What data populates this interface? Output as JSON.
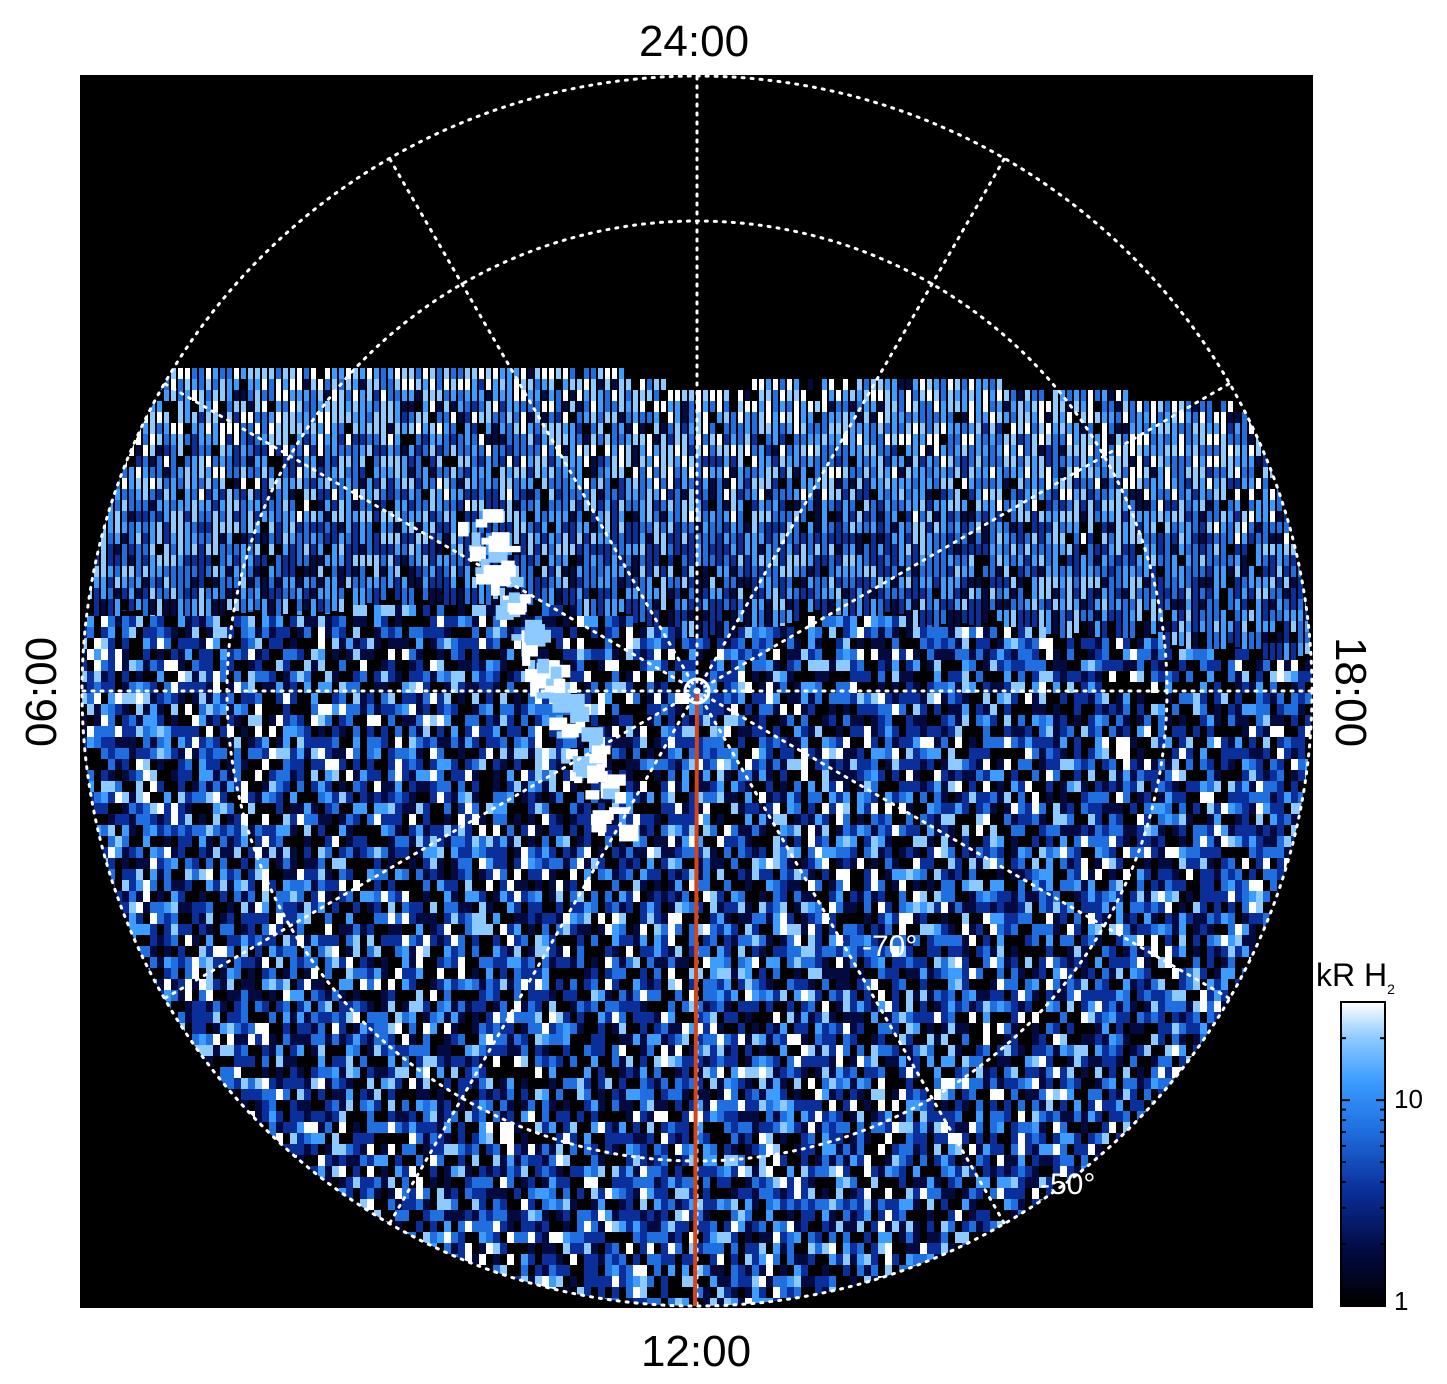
{
  "polar_map": {
    "local_time_labels": {
      "top": "24:00",
      "bottom": "12:00",
      "left": "06:00",
      "right": "18:00"
    },
    "latitude_labels": [
      "-70°",
      "-50°"
    ],
    "colors": {
      "background": "#000000",
      "grid": "#ffffff",
      "meridian_line": "#d2461e",
      "emission_palette": [
        "#000000",
        "#020a40",
        "#0a2f9a",
        "#1f6fe0",
        "#3c9cff",
        "#8ccaff",
        "#ffffff"
      ]
    }
  },
  "colorbar": {
    "title_prefix": "kR H",
    "title_subscript": "2",
    "tick_labels": [
      "1",
      "10"
    ],
    "scale": "log",
    "range": [
      1,
      30
    ]
  }
}
